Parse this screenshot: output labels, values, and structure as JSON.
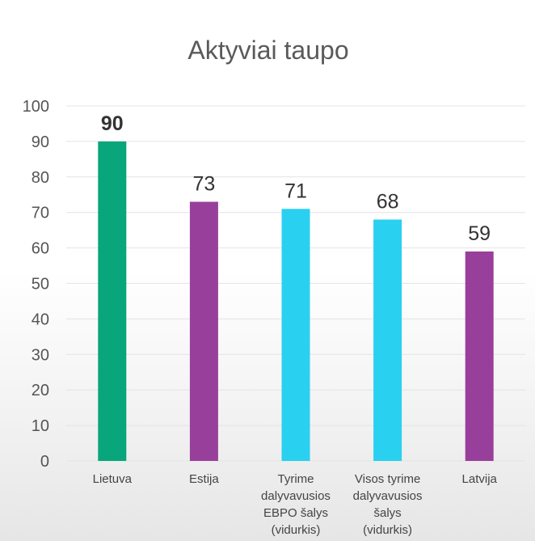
{
  "chart_data": {
    "type": "bar",
    "title": "Aktyviai taupo",
    "categories": [
      [
        "Lietuva"
      ],
      [
        "Estija"
      ],
      [
        "Tyrime",
        "dalyvavusios",
        "EBPO šalys",
        "(vidurkis)"
      ],
      [
        "Visos tyrime",
        "dalyvavusios",
        "šalys",
        "(vidurkis)"
      ],
      [
        "Latvija"
      ]
    ],
    "values": [
      90,
      73,
      71,
      68,
      59
    ],
    "data_labels": [
      "90",
      "73",
      "71",
      "68",
      "59"
    ],
    "highlight_index": 0,
    "colors": [
      "#08a67a",
      "#983f9b",
      "#2ad0ef",
      "#2ad0ef",
      "#983f9b"
    ],
    "ylim": [
      0,
      100
    ],
    "yticks": [
      "0",
      "10",
      "20",
      "30",
      "40",
      "50",
      "60",
      "70",
      "80",
      "90",
      "100"
    ],
    "grid": true,
    "legend": "none"
  }
}
